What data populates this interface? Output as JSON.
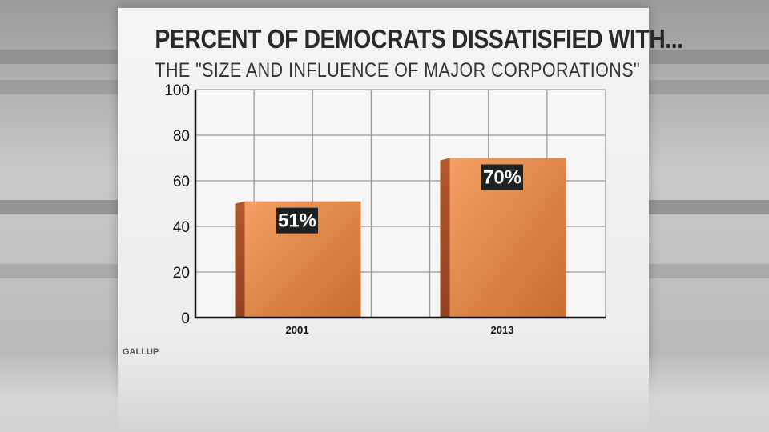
{
  "chart_data": {
    "type": "bar",
    "title": "PERCENT OF DEMOCRATS DISSATISFIED WITH...",
    "subtitle": "THE \"SIZE AND INFLUENCE OF MAJOR CORPORATIONS\"",
    "categories": [
      "2001",
      "2013"
    ],
    "values": [
      51,
      70
    ],
    "value_labels": [
      "51%",
      "70%"
    ],
    "ylim": [
      0,
      100
    ],
    "yticks": [
      0,
      20,
      40,
      60,
      80,
      100
    ],
    "xlabel": "",
    "ylabel": "",
    "grid": true,
    "source": "GALLUP",
    "bar_color": "#e0823f"
  }
}
